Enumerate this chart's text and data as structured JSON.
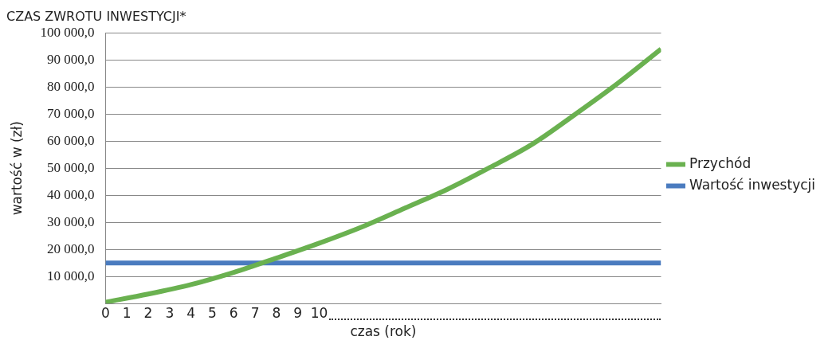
{
  "chart_data": {
    "type": "line",
    "title": "CZAS ZWROTU INWESTYCJI*",
    "xlabel": "czas (rok)",
    "ylabel": "wartość w (zł)",
    "xlim": [
      0,
      26
    ],
    "xticks": [
      0,
      1,
      2,
      3,
      4,
      5,
      6,
      7,
      8,
      9,
      {
        "value": 10,
        "label": "10"
      }
    ],
    "ylim": [
      0,
      100000
    ],
    "yticks": [
      {
        "value": 0,
        "label": null
      },
      {
        "value": 10000,
        "label": "10 000,0"
      },
      {
        "value": 20000,
        "label": "20 000,0"
      },
      {
        "value": 30000,
        "label": "30 000,0"
      },
      {
        "value": 40000,
        "label": "40 000,0"
      },
      {
        "value": 50000,
        "label": "50 000,0"
      },
      {
        "value": 60000,
        "label": "60 000,0"
      },
      {
        "value": 70000,
        "label": "70 000,0"
      },
      {
        "value": 80000,
        "label": "80 000,0"
      },
      {
        "value": 90000,
        "label": "90 000,0"
      },
      {
        "value": 100000,
        "label": "100 000,0"
      }
    ],
    "grid": "y",
    "legend": "right",
    "marker": "none",
    "line_style": "solid",
    "series": [
      {
        "name": "Przychód",
        "color": "#6ab150",
        "x": [
          0,
          2,
          4,
          6,
          8,
          10,
          12,
          14,
          16,
          18,
          20,
          22,
          24,
          26
        ],
        "values": [
          500,
          3500,
          7000,
          11500,
          16800,
          22300,
          28300,
          35200,
          42200,
          50300,
          59000,
          70000,
          81500,
          94000
        ]
      },
      {
        "name": "Wartość inwestycji",
        "color": "#4a7bbf",
        "x": [
          0,
          26
        ],
        "values": [
          15000,
          15000
        ]
      }
    ]
  }
}
